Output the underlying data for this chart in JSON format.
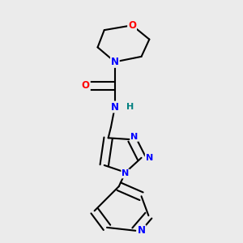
{
  "background_color": "#ebebeb",
  "bond_color": "#000000",
  "bond_width": 1.5,
  "atom_colors": {
    "N": "#0000ff",
    "O": "#ff0000",
    "C": "#000000",
    "H": "#008080"
  },
  "font_size": 8.5,
  "fig_size": [
    3.0,
    3.0
  ],
  "dpi": 100
}
